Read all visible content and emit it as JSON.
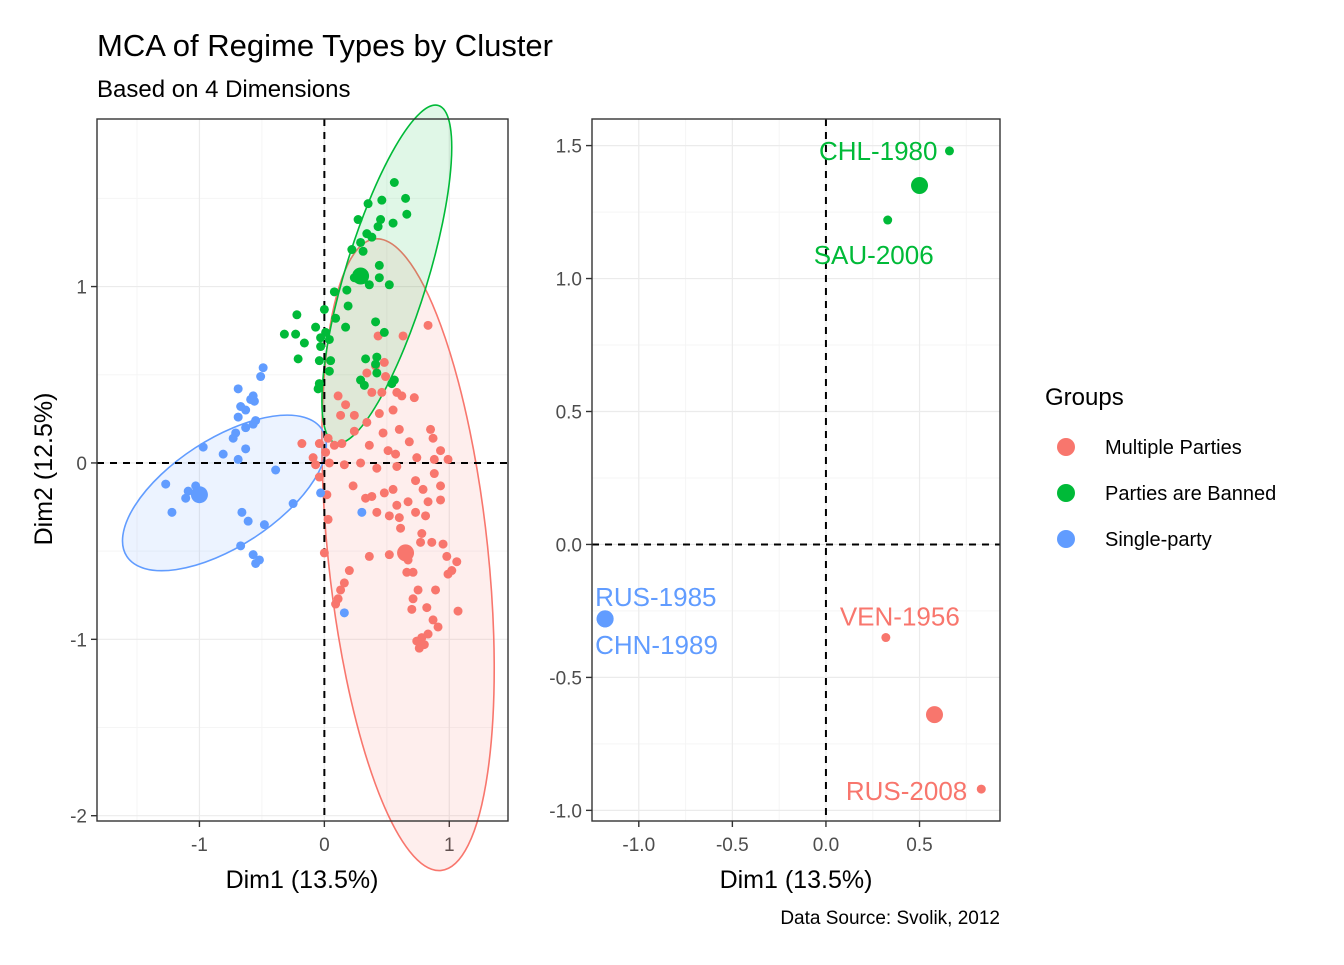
{
  "title": "MCA of Regime Types by Cluster",
  "subtitle": "Based on 4 Dimensions",
  "caption": "Data Source: Svolik, 2012",
  "colors": {
    "Multiple Parties": "#F8766D",
    "Parties are Banned": "#00BA38",
    "Single-party": "#619CFF"
  },
  "legend": {
    "title": "Groups",
    "entries": [
      {
        "label": "Multiple Parties",
        "color": "#F8766D"
      },
      {
        "label": "Parties are Banned",
        "color": "#00BA38"
      },
      {
        "label": "Single-party",
        "color": "#619CFF"
      }
    ]
  },
  "chart_data": [
    {
      "type": "scatter",
      "xlabel": "Dim1 (13.5%)",
      "ylabel": "Dim2 (12.5%)",
      "xlim": [
        -1.82,
        1.47
      ],
      "ylim": [
        -2.03,
        1.95
      ],
      "x_ticks": [
        -1,
        0,
        1
      ],
      "y_ticks": [
        -2,
        -1,
        0,
        1
      ],
      "grid": true,
      "reference_lines": {
        "x": 0,
        "y": 0
      },
      "ellipses": [
        {
          "group": "Multiple Parties",
          "cx": 0.67,
          "cy": -0.52,
          "rx": 0.64,
          "ry": 1.8,
          "angle": -6
        },
        {
          "group": "Parties are Banned",
          "cx": 0.5,
          "cy": 1.07,
          "rx": 0.33,
          "ry": 1.0,
          "angle": 17
        },
        {
          "group": "Single-party",
          "cx": -0.8,
          "cy": -0.17,
          "rx": 0.43,
          "ry": 0.66,
          "angle": 57
        }
      ],
      "centroids": [
        {
          "group": "Multiple Parties",
          "x": 0.65,
          "y": -0.51
        },
        {
          "group": "Parties are Banned",
          "x": 0.29,
          "y": 1.06
        },
        {
          "group": "Single-party",
          "x": -1.0,
          "y": -0.18
        }
      ],
      "series": [
        {
          "name": "Multiple Parties",
          "points": [
            [
              0.83,
              0.78
            ],
            [
              0.63,
              0.72
            ],
            [
              0.43,
              0.72
            ],
            [
              0.34,
              0.51
            ],
            [
              0.41,
              0.55
            ],
            [
              0.48,
              0.57
            ],
            [
              0.49,
              0.49
            ],
            [
              0.38,
              0.4
            ],
            [
              0.46,
              0.4
            ],
            [
              0.58,
              0.4
            ],
            [
              0.72,
              0.37
            ],
            [
              0.11,
              0.38
            ],
            [
              0.17,
              0.33
            ],
            [
              0.13,
              0.27
            ],
            [
              0.24,
              0.27
            ],
            [
              0.44,
              0.28
            ],
            [
              0.62,
              0.38
            ],
            [
              0.55,
              0.3
            ],
            [
              0.24,
              0.18
            ],
            [
              0.34,
              0.23
            ],
            [
              0.47,
              0.17
            ],
            [
              0.6,
              0.19
            ],
            [
              0.68,
              0.12
            ],
            [
              0.85,
              0.19
            ],
            [
              -0.18,
              0.11
            ],
            [
              0.03,
              0.14
            ],
            [
              -0.04,
              0.11
            ],
            [
              0.01,
              0.06
            ],
            [
              0.08,
              0.1
            ],
            [
              0.14,
              0.11
            ],
            [
              0.36,
              0.1
            ],
            [
              0.51,
              0.07
            ],
            [
              0.57,
              0.05
            ],
            [
              0.87,
              0.14
            ],
            [
              0.93,
              0.07
            ],
            [
              0.99,
              0.02
            ],
            [
              0.74,
              0.03
            ],
            [
              0.88,
              0.02
            ],
            [
              -0.09,
              0.03
            ],
            [
              -0.07,
              -0.01
            ],
            [
              0.04,
              0.0
            ],
            [
              0.16,
              -0.01
            ],
            [
              0.29,
              0.0
            ],
            [
              0.42,
              -0.03
            ],
            [
              0.58,
              -0.02
            ],
            [
              -0.04,
              -0.08
            ],
            [
              0.23,
              -0.13
            ],
            [
              0.48,
              -0.17
            ],
            [
              0.55,
              -0.15
            ],
            [
              0.73,
              -0.1
            ],
            [
              0.88,
              -0.06
            ],
            [
              0.79,
              -0.15
            ],
            [
              0.93,
              -0.13
            ],
            [
              0.02,
              -0.18
            ],
            [
              0.33,
              -0.2
            ],
            [
              0.38,
              -0.19
            ],
            [
              0.58,
              -0.24
            ],
            [
              0.67,
              -0.22
            ],
            [
              0.83,
              -0.22
            ],
            [
              0.93,
              -0.21
            ],
            [
              0.03,
              -0.32
            ],
            [
              0.42,
              -0.28
            ],
            [
              0.52,
              -0.3
            ],
            [
              0.6,
              -0.31
            ],
            [
              0.73,
              -0.28
            ],
            [
              0.81,
              -0.3
            ],
            [
              0.61,
              -0.37
            ],
            [
              0.78,
              -0.4
            ],
            [
              0.86,
              -0.45
            ],
            [
              0.52,
              -0.52
            ],
            [
              0.77,
              -0.45
            ],
            [
              0.95,
              -0.46
            ],
            [
              0.98,
              -0.53
            ],
            [
              0.0,
              -0.51
            ],
            [
              0.36,
              -0.53
            ],
            [
              0.67,
              -0.55
            ],
            [
              1.06,
              -0.56
            ],
            [
              1.02,
              -0.61
            ],
            [
              0.2,
              -0.61
            ],
            [
              0.66,
              -0.62
            ],
            [
              0.71,
              -0.62
            ],
            [
              0.99,
              -0.63
            ],
            [
              0.16,
              -0.68
            ],
            [
              0.13,
              -0.72
            ],
            [
              0.75,
              -0.72
            ],
            [
              0.89,
              -0.72
            ],
            [
              0.11,
              -0.77
            ],
            [
              0.71,
              -0.77
            ],
            [
              0.09,
              -0.8
            ],
            [
              0.7,
              -0.83
            ],
            [
              0.82,
              -0.82
            ],
            [
              1.07,
              -0.84
            ],
            [
              0.87,
              -0.89
            ],
            [
              0.91,
              -0.93
            ],
            [
              0.83,
              -0.97
            ],
            [
              0.78,
              -0.99
            ],
            [
              0.8,
              -1.03
            ],
            [
              0.76,
              -1.05
            ],
            [
              0.74,
              -1.01
            ]
          ]
        },
        {
          "name": "Parties are Banned",
          "points": [
            [
              0.56,
              1.59
            ],
            [
              0.65,
              1.5
            ],
            [
              0.46,
              1.49
            ],
            [
              0.35,
              1.47
            ],
            [
              0.66,
              1.41
            ],
            [
              0.27,
              1.38
            ],
            [
              0.45,
              1.38
            ],
            [
              0.55,
              1.36
            ],
            [
              0.38,
              1.28
            ],
            [
              0.43,
              1.34
            ],
            [
              0.34,
              1.3
            ],
            [
              0.29,
              1.25
            ],
            [
              0.22,
              1.21
            ],
            [
              0.31,
              1.2
            ],
            [
              0.24,
              1.05
            ],
            [
              0.44,
              1.12
            ],
            [
              0.31,
              1.04
            ],
            [
              0.36,
              1.01
            ],
            [
              0.44,
              1.05
            ],
            [
              0.52,
              1.01
            ],
            [
              0.18,
              0.98
            ],
            [
              0.08,
              0.97
            ],
            [
              0.19,
              0.89
            ],
            [
              0.0,
              0.87
            ],
            [
              0.09,
              0.82
            ],
            [
              -0.22,
              0.84
            ],
            [
              0.17,
              0.77
            ],
            [
              0.41,
              0.8
            ],
            [
              -0.07,
              0.77
            ],
            [
              -0.23,
              0.73
            ],
            [
              -0.03,
              0.71
            ],
            [
              0.01,
              0.74
            ],
            [
              0.48,
              0.74
            ],
            [
              -0.16,
              0.68
            ],
            [
              0.04,
              0.7
            ],
            [
              -0.03,
              0.66
            ],
            [
              -0.32,
              0.73
            ],
            [
              0.42,
              0.6
            ],
            [
              0.05,
              0.58
            ],
            [
              -0.04,
              0.58
            ],
            [
              -0.21,
              0.59
            ],
            [
              0.33,
              0.59
            ],
            [
              0.41,
              0.56
            ],
            [
              0.42,
              0.51
            ],
            [
              0.56,
              0.47
            ],
            [
              0.04,
              0.52
            ],
            [
              -0.04,
              0.45
            ],
            [
              0.29,
              0.47
            ],
            [
              0.32,
              0.44
            ],
            [
              0.54,
              0.45
            ],
            [
              -0.05,
              0.42
            ]
          ]
        },
        {
          "name": "Single-party",
          "points": [
            [
              -0.49,
              0.54
            ],
            [
              -0.51,
              0.49
            ],
            [
              -0.69,
              0.42
            ],
            [
              -0.57,
              0.38
            ],
            [
              -0.59,
              0.36
            ],
            [
              -0.56,
              0.35
            ],
            [
              -0.67,
              0.32
            ],
            [
              -0.63,
              0.3
            ],
            [
              -0.69,
              0.26
            ],
            [
              -0.55,
              0.24
            ],
            [
              -0.57,
              0.22
            ],
            [
              -0.63,
              0.2
            ],
            [
              -0.71,
              0.17
            ],
            [
              -0.73,
              0.14
            ],
            [
              -0.97,
              0.09
            ],
            [
              -0.63,
              0.08
            ],
            [
              -0.69,
              0.02
            ],
            [
              -0.81,
              0.05
            ],
            [
              -0.39,
              -0.04
            ],
            [
              -1.03,
              -0.13
            ],
            [
              -1.09,
              -0.16
            ],
            [
              -1.11,
              -0.2
            ],
            [
              -1.27,
              -0.12
            ],
            [
              -1.22,
              -0.28
            ],
            [
              -0.25,
              -0.23
            ],
            [
              -0.66,
              -0.28
            ],
            [
              -0.61,
              -0.33
            ],
            [
              -0.48,
              -0.35
            ],
            [
              -0.67,
              -0.47
            ],
            [
              -0.57,
              -0.52
            ],
            [
              -0.55,
              -0.57
            ],
            [
              -0.52,
              -0.55
            ],
            [
              0.3,
              -0.28
            ],
            [
              0.16,
              -0.85
            ],
            [
              -0.03,
              -0.17
            ]
          ]
        }
      ]
    },
    {
      "type": "scatter",
      "xlabel": "Dim1 (13.5%)",
      "ylabel": "",
      "xlim": [
        -1.25,
        0.93
      ],
      "ylim": [
        -1.04,
        1.6
      ],
      "x_ticks": [
        -1.0,
        -0.5,
        0.0,
        0.5
      ],
      "y_ticks": [
        -1.0,
        -0.5,
        0.0,
        0.5,
        1.0,
        1.5
      ],
      "grid": true,
      "reference_lines": {
        "x": 0,
        "y": 0
      },
      "centroids": [
        {
          "group": "Parties are Banned",
          "x": 0.5,
          "y": 1.35
        },
        {
          "group": "Multiple Parties",
          "x": 0.58,
          "y": -0.64
        },
        {
          "group": "Single-party",
          "x": -1.18,
          "y": -0.28
        }
      ],
      "points": [
        {
          "label": "CHL-1980",
          "group": "Parties are Banned",
          "x": 0.66,
          "y": 1.48
        },
        {
          "label": "SAU-2006",
          "group": "Parties are Banned",
          "x": 0.33,
          "y": 1.22
        },
        {
          "label": "VEN-1956",
          "group": "Multiple Parties",
          "x": 0.32,
          "y": -0.35
        },
        {
          "label": "RUS-2008",
          "group": "Multiple Parties",
          "x": 0.83,
          "y": -0.92
        },
        {
          "label": "RUS-1985",
          "group": "Single-party",
          "x": -1.18,
          "y": -0.28
        },
        {
          "label": "CHN-1989",
          "group": "Single-party",
          "x": -1.18,
          "y": -0.28
        }
      ]
    }
  ]
}
